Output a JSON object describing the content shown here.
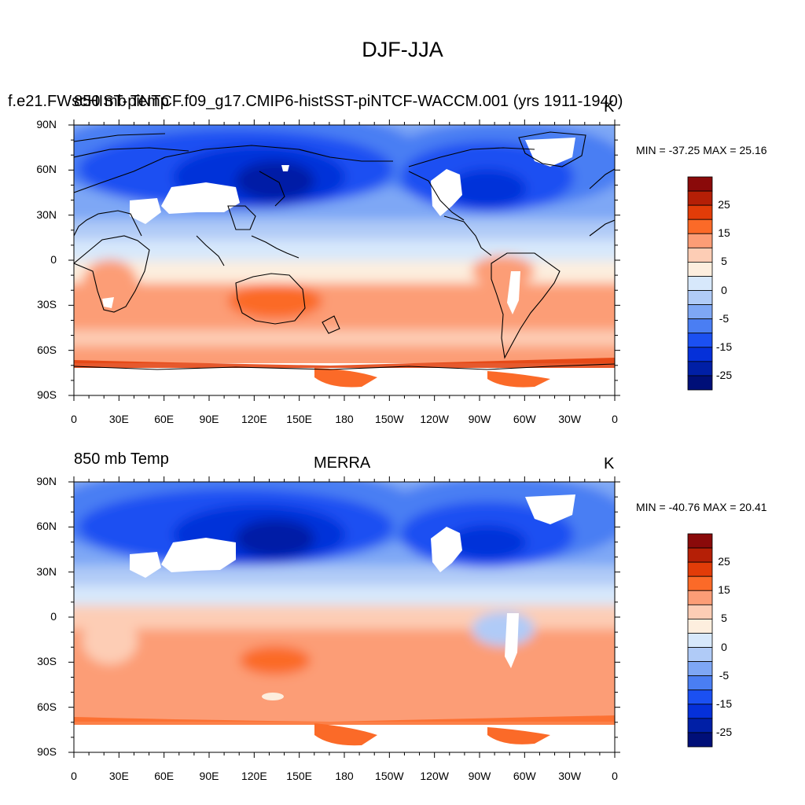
{
  "figure": {
    "title": "DJF-JJA",
    "lon_ticks": [
      "0",
      "30E",
      "60E",
      "90E",
      "120E",
      "150E",
      "180",
      "150W",
      "120W",
      "90W",
      "60W",
      "30W",
      "0"
    ],
    "lat_ticks": [
      "90N",
      "60N",
      "30N",
      "0",
      "30S",
      "60S",
      "90S"
    ],
    "colorbar": {
      "labels": [
        "25",
        "15",
        "5",
        "0",
        "-5",
        "-15",
        "-25"
      ],
      "colors": [
        "#fbfbfb",
        "#8a0a0a",
        "#b51f06",
        "#e23c08",
        "#fb6a28",
        "#fc9d76",
        "#fdcdb5",
        "#fdeede",
        "#d7e8fb",
        "#b0cbf7",
        "#7ea7f5",
        "#4a7ef3",
        "#1b50f2",
        "#0530d9",
        "#001fa6",
        "#000f78"
      ]
    },
    "panels": [
      {
        "left_label": "850 mb Temp",
        "left_label_overlap": "f.e21.FWscHIST-piNTCF.f09_g17.CMIP6-histSST-piNTCF-WACCM.001 (yrs 1911-1940)",
        "center_label": "",
        "right_label": "K",
        "min_max": "MIN = -37.25 MAX =  25.16",
        "min": -37.25,
        "max": 25.16
      },
      {
        "left_label": "850 mb Temp",
        "center_label": "MERRA",
        "right_label": "K",
        "min_max": "MIN = -40.76 MAX =  20.41",
        "min": -40.76,
        "max": 20.41
      }
    ]
  }
}
